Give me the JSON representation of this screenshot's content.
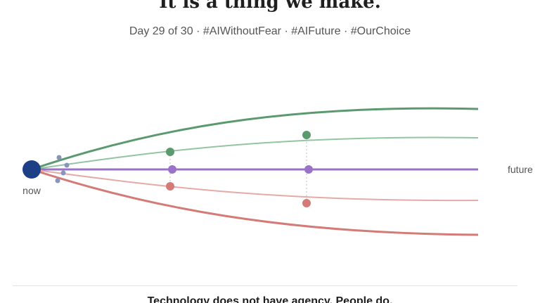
{
  "header": {
    "title_line": "It is a thing we make.",
    "day_text": "Day 29 of 30",
    "separator": "·",
    "hashtags": [
      "#AIWithoutFear",
      "#AIFuture",
      "#OurChoice"
    ]
  },
  "diagram": {
    "start_label": "now",
    "end_label": "future",
    "colors": {
      "origin": "#1c3f86",
      "scatter": "#8795bd",
      "green_strong": "#5b9a6e",
      "green_light": "#94c4a1",
      "purple": "#9a73c8",
      "red_light": "#e6aaa6",
      "red_strong": "#d47b77",
      "dashed_marker": "#bfbfbf"
    }
  },
  "footer": {
    "text": "Technology does not have agency. People do."
  }
}
